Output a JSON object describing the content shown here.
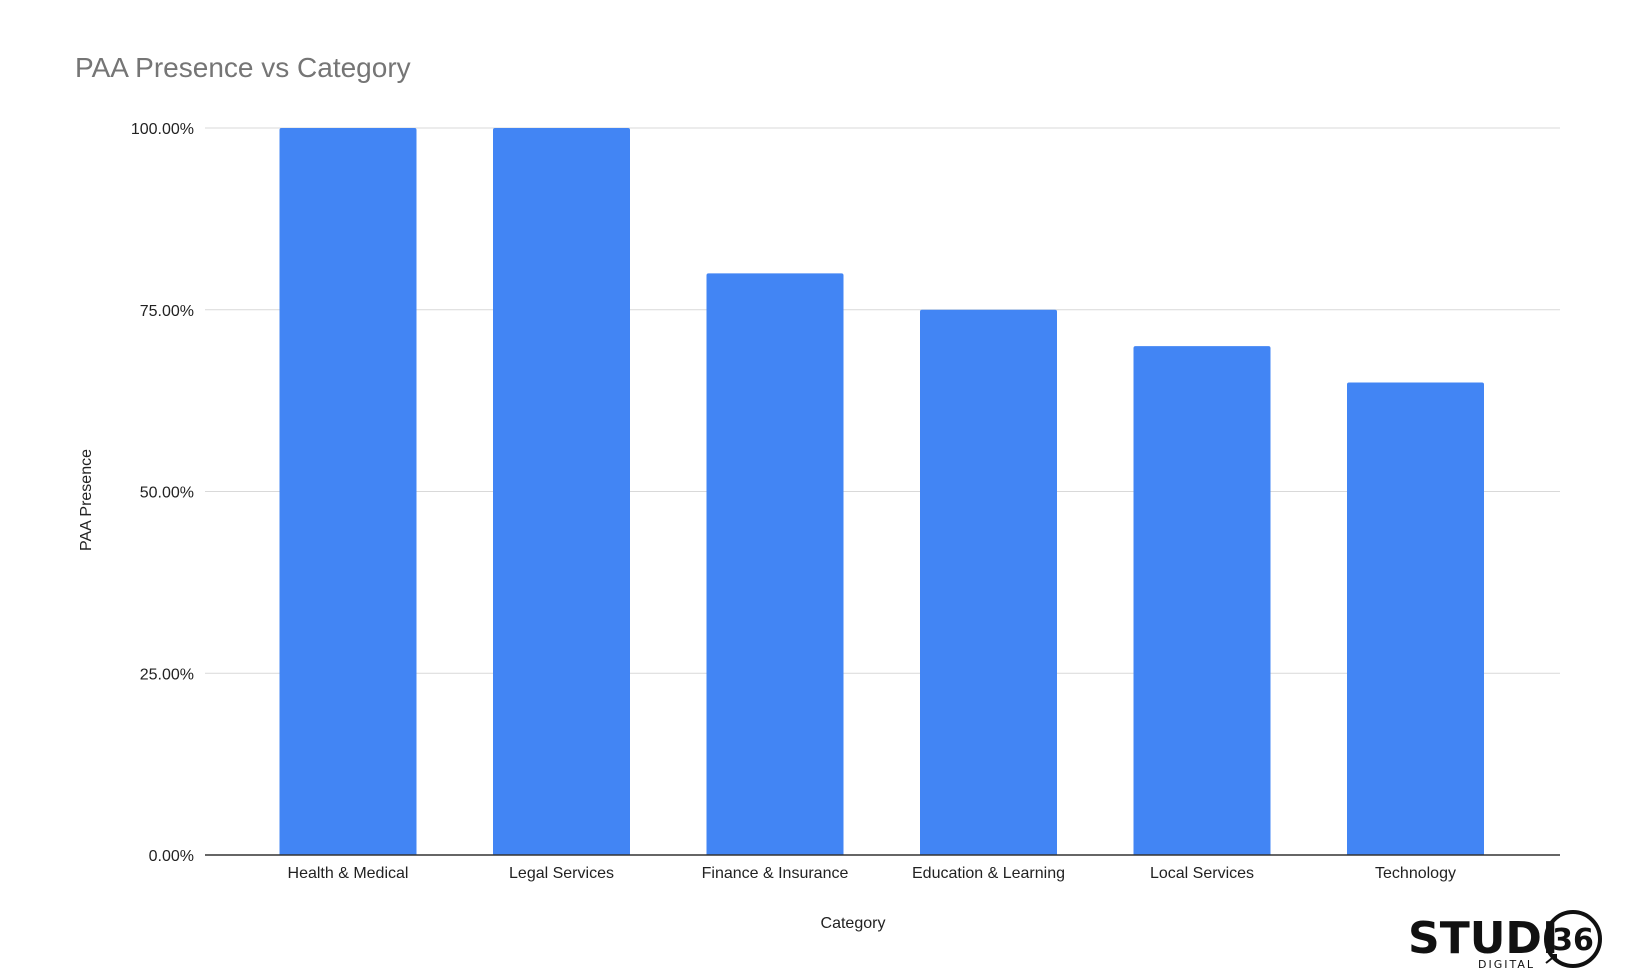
{
  "colors": {
    "bar": "#4285f4",
    "grid": "#d9d9d9",
    "axis": "#333333",
    "title": "#757575",
    "text": "#222222"
  },
  "chart_data": {
    "type": "bar",
    "title": "PAA Presence vs Category",
    "xlabel": "Category",
    "ylabel": "PAA Presence",
    "categories": [
      "Health & Medical",
      "Legal Services",
      "Finance & Insurance",
      "Education & Learning",
      "Local Services",
      "Technology"
    ],
    "values": [
      100,
      100,
      80,
      75,
      70,
      65
    ],
    "ylim": [
      0,
      100
    ],
    "yticks": [
      0,
      25,
      50,
      75,
      100
    ],
    "ytick_labels": [
      "0.00%",
      "25.00%",
      "50.00%",
      "75.00%",
      "100.00%"
    ],
    "grid": true,
    "legend": "none"
  },
  "logo": {
    "text": "STUDI",
    "number": "36",
    "sub": "DIGITAL"
  }
}
